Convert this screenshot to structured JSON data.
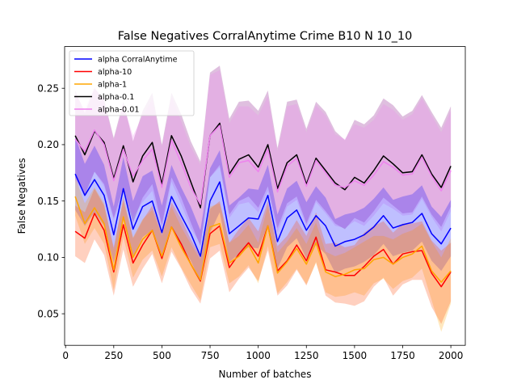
{
  "chart_data": {
    "type": "line",
    "title": "False Negatives CorralAnytime Crime B10 N 10_10",
    "xlabel": "Number of batches",
    "ylabel": "False Negatives",
    "xlim": [
      -5,
      2075
    ],
    "ylim": [
      0.022,
      0.287
    ],
    "xticks": [
      0,
      250,
      500,
      750,
      1000,
      1250,
      1500,
      1750,
      2000
    ],
    "yticks": [
      0.05,
      0.1,
      0.15,
      0.2,
      0.25
    ],
    "ytick_labels": [
      "0.05",
      "0.10",
      "0.15",
      "0.20",
      "0.25"
    ],
    "grid": false,
    "legend_position": "top-left",
    "x": [
      50,
      100,
      150,
      200,
      250,
      300,
      350,
      400,
      450,
      500,
      550,
      600,
      650,
      700,
      750,
      800,
      850,
      900,
      950,
      1000,
      1050,
      1100,
      1150,
      1200,
      1250,
      1300,
      1350,
      1400,
      1450,
      1500,
      1550,
      1600,
      1650,
      1700,
      1750,
      1800,
      1850,
      1900,
      1950,
      2000
    ],
    "series": [
      {
        "name": "alpha CorralAnytime",
        "color": "#0000ff",
        "band_color": "#0000ff",
        "values": [
          0.174,
          0.155,
          0.169,
          0.155,
          0.12,
          0.161,
          0.125,
          0.145,
          0.15,
          0.122,
          0.154,
          0.137,
          0.121,
          0.101,
          0.15,
          0.167,
          0.121,
          0.128,
          0.135,
          0.134,
          0.155,
          0.114,
          0.135,
          0.142,
          0.124,
          0.137,
          0.128,
          0.11,
          0.114,
          0.116,
          0.12,
          0.127,
          0.137,
          0.126,
          0.129,
          0.131,
          0.139,
          0.121,
          0.112,
          0.126
        ],
        "lower": [
          0.142,
          0.128,
          0.14,
          0.128,
          0.095,
          0.134,
          0.1,
          0.118,
          0.124,
          0.098,
          0.126,
          0.112,
          0.097,
          0.078,
          0.122,
          0.14,
          0.096,
          0.103,
          0.109,
          0.108,
          0.128,
          0.09,
          0.109,
          0.117,
          0.099,
          0.111,
          0.103,
          0.086,
          0.09,
          0.092,
          0.096,
          0.102,
          0.112,
          0.101,
          0.104,
          0.106,
          0.114,
          0.097,
          0.088,
          0.101
        ],
        "upper": [
          0.207,
          0.183,
          0.199,
          0.182,
          0.145,
          0.189,
          0.15,
          0.172,
          0.177,
          0.146,
          0.182,
          0.162,
          0.145,
          0.124,
          0.179,
          0.195,
          0.146,
          0.153,
          0.161,
          0.16,
          0.182,
          0.138,
          0.161,
          0.168,
          0.149,
          0.163,
          0.153,
          0.134,
          0.138,
          0.14,
          0.144,
          0.152,
          0.162,
          0.151,
          0.154,
          0.156,
          0.164,
          0.145,
          0.136,
          0.151
        ]
      },
      {
        "name": "alpha-10",
        "color": "#ff0000",
        "band_color": "#ff4500",
        "values": [
          0.123,
          0.117,
          0.139,
          0.124,
          0.087,
          0.129,
          0.095,
          0.111,
          0.124,
          0.099,
          0.127,
          0.112,
          0.094,
          0.079,
          0.121,
          0.128,
          0.091,
          0.103,
          0.113,
          0.101,
          0.128,
          0.088,
          0.097,
          0.111,
          0.097,
          0.118,
          0.089,
          0.087,
          0.084,
          0.084,
          0.092,
          0.101,
          0.107,
          0.094,
          0.103,
          0.105,
          0.106,
          0.086,
          0.074,
          0.087
        ],
        "lower": [
          0.101,
          0.095,
          0.116,
          0.102,
          0.066,
          0.107,
          0.074,
          0.09,
          0.103,
          0.077,
          0.105,
          0.09,
          0.072,
          0.059,
          0.099,
          0.106,
          0.069,
          0.081,
          0.091,
          0.079,
          0.106,
          0.066,
          0.075,
          0.089,
          0.075,
          0.096,
          0.066,
          0.06,
          0.059,
          0.057,
          0.061,
          0.074,
          0.082,
          0.066,
          0.076,
          0.08,
          0.08,
          0.056,
          0.041,
          0.061
        ],
        "upper": [
          0.146,
          0.14,
          0.161,
          0.146,
          0.109,
          0.151,
          0.117,
          0.133,
          0.146,
          0.121,
          0.149,
          0.134,
          0.116,
          0.101,
          0.143,
          0.15,
          0.113,
          0.125,
          0.135,
          0.123,
          0.15,
          0.11,
          0.119,
          0.133,
          0.119,
          0.14,
          0.112,
          0.113,
          0.109,
          0.111,
          0.122,
          0.128,
          0.132,
          0.122,
          0.13,
          0.13,
          0.132,
          0.115,
          0.106,
          0.113
        ]
      },
      {
        "name": "alpha-1",
        "color": "#ffa500",
        "band_color": "#ffa500",
        "values": [
          0.154,
          0.13,
          0.144,
          0.13,
          0.089,
          0.136,
          0.1,
          0.116,
          0.124,
          0.101,
          0.127,
          0.109,
          0.094,
          0.08,
          0.127,
          0.13,
          0.095,
          0.101,
          0.111,
          0.095,
          0.128,
          0.086,
          0.096,
          0.108,
          0.094,
          0.113,
          0.087,
          0.083,
          0.085,
          0.089,
          0.09,
          0.098,
          0.1,
          0.094,
          0.1,
          0.103,
          0.11,
          0.088,
          0.078,
          0.088
        ],
        "lower": [
          0.137,
          0.112,
          0.126,
          0.112,
          0.071,
          0.118,
          0.082,
          0.098,
          0.106,
          0.083,
          0.109,
          0.091,
          0.076,
          0.062,
          0.109,
          0.112,
          0.077,
          0.083,
          0.093,
          0.077,
          0.11,
          0.068,
          0.078,
          0.09,
          0.076,
          0.095,
          0.069,
          0.065,
          0.066,
          0.069,
          0.066,
          0.077,
          0.081,
          0.072,
          0.079,
          0.082,
          0.09,
          0.062,
          0.034,
          0.059
        ],
        "upper": [
          0.171,
          0.148,
          0.162,
          0.148,
          0.107,
          0.154,
          0.118,
          0.134,
          0.142,
          0.119,
          0.145,
          0.127,
          0.112,
          0.098,
          0.145,
          0.148,
          0.113,
          0.119,
          0.129,
          0.113,
          0.146,
          0.104,
          0.114,
          0.126,
          0.112,
          0.131,
          0.105,
          0.101,
          0.104,
          0.109,
          0.114,
          0.119,
          0.119,
          0.116,
          0.121,
          0.124,
          0.13,
          0.114,
          0.1,
          0.117
        ]
      },
      {
        "name": "alpha-0.1",
        "color": "#000000",
        "band_color": "#800080",
        "values": [
          0.208,
          0.191,
          0.212,
          0.202,
          0.17,
          0.199,
          0.167,
          0.19,
          0.202,
          0.165,
          0.208,
          0.19,
          0.167,
          0.144,
          0.208,
          0.219,
          0.174,
          0.187,
          0.191,
          0.18,
          0.2,
          0.161,
          0.184,
          0.191,
          0.165,
          0.188,
          0.177,
          0.166,
          0.16,
          0.171,
          0.166,
          0.177,
          0.19,
          0.183,
          0.175,
          0.176,
          0.191,
          0.174,
          0.162,
          0.181
        ],
        "lower": [
          0.171,
          0.155,
          0.176,
          0.165,
          0.135,
          0.162,
          0.131,
          0.153,
          0.165,
          0.129,
          0.171,
          0.153,
          0.131,
          0.11,
          0.171,
          0.182,
          0.138,
          0.15,
          0.154,
          0.144,
          0.163,
          0.126,
          0.148,
          0.154,
          0.13,
          0.151,
          0.141,
          0.13,
          0.125,
          0.135,
          0.131,
          0.141,
          0.153,
          0.146,
          0.139,
          0.14,
          0.154,
          0.138,
          0.127,
          0.145
        ],
        "upper": [
          0.248,
          0.228,
          0.25,
          0.24,
          0.206,
          0.238,
          0.203,
          0.23,
          0.246,
          0.2,
          0.246,
          0.227,
          0.203,
          0.185,
          0.264,
          0.27,
          0.223,
          0.238,
          0.239,
          0.23,
          0.248,
          0.197,
          0.238,
          0.24,
          0.214,
          0.238,
          0.229,
          0.212,
          0.204,
          0.222,
          0.218,
          0.226,
          0.241,
          0.235,
          0.225,
          0.23,
          0.244,
          0.229,
          0.215,
          0.234
        ]
      },
      {
        "name": "alpha-0.01",
        "color": "#ee82ee",
        "band_color": "#ee82ee",
        "values": [
          0.205,
          0.194,
          0.213,
          0.2,
          0.168,
          0.196,
          0.172,
          0.186,
          0.196,
          0.162,
          0.204,
          0.184,
          0.162,
          0.147,
          0.208,
          0.217,
          0.171,
          0.184,
          0.186,
          0.176,
          0.196,
          0.158,
          0.181,
          0.188,
          0.163,
          0.186,
          0.175,
          0.164,
          0.162,
          0.168,
          0.164,
          0.173,
          0.185,
          0.18,
          0.173,
          0.174,
          0.189,
          0.172,
          0.159,
          0.177
        ],
        "lower": [
          0.168,
          0.157,
          0.176,
          0.163,
          0.133,
          0.159,
          0.136,
          0.149,
          0.159,
          0.126,
          0.167,
          0.147,
          0.126,
          0.112,
          0.171,
          0.18,
          0.135,
          0.147,
          0.149,
          0.14,
          0.159,
          0.122,
          0.145,
          0.151,
          0.127,
          0.149,
          0.139,
          0.128,
          0.126,
          0.132,
          0.128,
          0.137,
          0.148,
          0.143,
          0.137,
          0.138,
          0.152,
          0.136,
          0.123,
          0.141
        ],
        "upper": [
          0.245,
          0.231,
          0.251,
          0.238,
          0.204,
          0.235,
          0.208,
          0.226,
          0.24,
          0.198,
          0.242,
          0.221,
          0.198,
          0.182,
          0.262,
          0.266,
          0.219,
          0.234,
          0.234,
          0.226,
          0.243,
          0.194,
          0.234,
          0.236,
          0.211,
          0.235,
          0.226,
          0.209,
          0.205,
          0.218,
          0.215,
          0.222,
          0.236,
          0.231,
          0.222,
          0.227,
          0.241,
          0.226,
          0.211,
          0.23
        ]
      }
    ]
  }
}
